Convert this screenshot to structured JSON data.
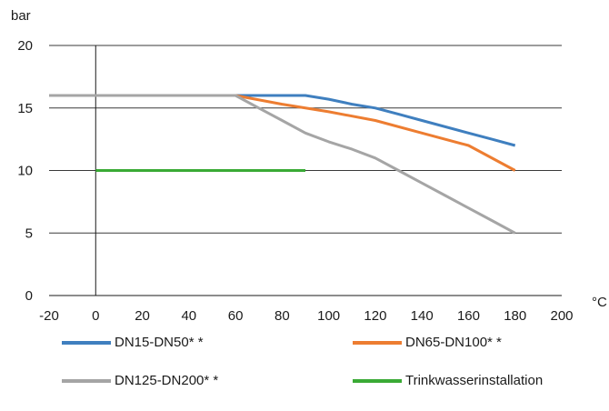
{
  "chart_data": {
    "type": "line",
    "title": "",
    "ylabel": "bar",
    "xlabel": "°C",
    "xlim": [
      -20,
      200
    ],
    "ylim": [
      0,
      20
    ],
    "x_ticks": [
      "-20",
      "0",
      "20",
      "40",
      "60",
      "80",
      "100",
      "120",
      "140",
      "160",
      "180",
      "200"
    ],
    "y_ticks": [
      "0",
      "5",
      "10",
      "15",
      "20"
    ],
    "grid": "horizontal",
    "legend_position": "bottom",
    "series": [
      {
        "name": "DN15-DN50* *",
        "color": "#3f7fbf",
        "points": [
          [
            -20,
            16
          ],
          [
            60,
            16
          ],
          [
            90,
            16
          ],
          [
            100,
            15.7
          ],
          [
            110,
            15.3
          ],
          [
            120,
            15
          ],
          [
            130,
            14.5
          ],
          [
            140,
            14
          ],
          [
            160,
            13
          ],
          [
            170,
            12.5
          ],
          [
            180,
            12
          ]
        ]
      },
      {
        "name": "DN65-DN100* *",
        "color": "#ed7d31",
        "points": [
          [
            -20,
            16
          ],
          [
            60,
            16
          ],
          [
            80,
            15.3
          ],
          [
            100,
            14.7
          ],
          [
            120,
            14
          ],
          [
            140,
            13
          ],
          [
            160,
            12
          ],
          [
            180,
            10
          ]
        ]
      },
      {
        "name": "DN125-DN200* *",
        "color": "#a5a5a5",
        "points": [
          [
            -20,
            16
          ],
          [
            60,
            16
          ],
          [
            70,
            15
          ],
          [
            80,
            14
          ],
          [
            90,
            13
          ],
          [
            100,
            12.3
          ],
          [
            110,
            11.7
          ],
          [
            120,
            11
          ],
          [
            130,
            10
          ],
          [
            140,
            9
          ],
          [
            150,
            8
          ],
          [
            160,
            7
          ],
          [
            170,
            6
          ],
          [
            180,
            5
          ]
        ]
      },
      {
        "name": "Trinkwasserinstallation",
        "color": "#3aaa35",
        "points": [
          [
            0,
            10
          ],
          [
            90,
            10
          ]
        ]
      }
    ]
  }
}
